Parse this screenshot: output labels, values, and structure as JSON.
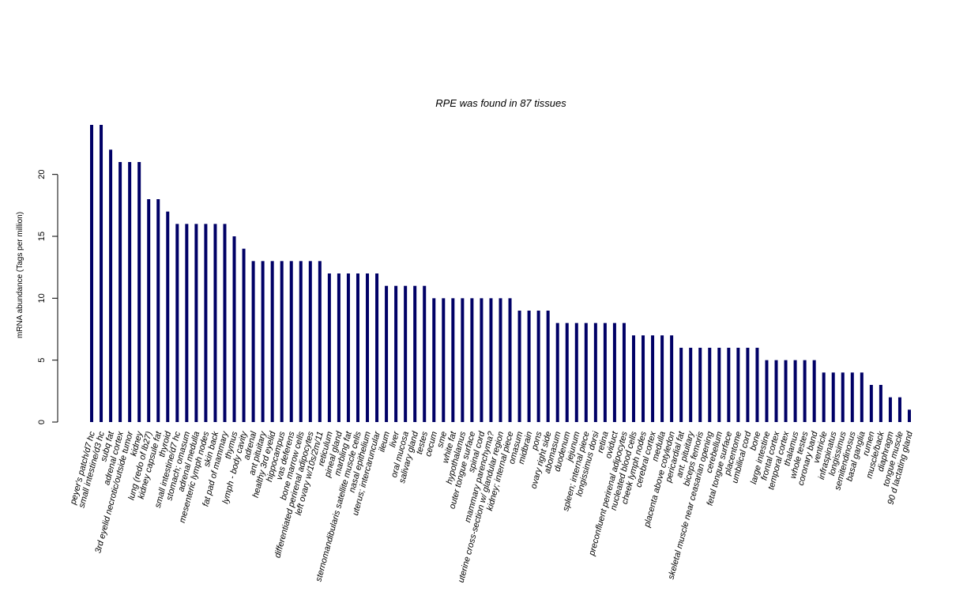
{
  "chart_data": {
    "type": "bar",
    "title": "RPE  was found in  87  tissues",
    "xlabel": "",
    "ylabel": "mRNA abundance (Tags per million)",
    "ylim": [
      0,
      24
    ],
    "yticks": [
      0,
      5,
      10,
      15,
      20
    ],
    "bar_color": "#000066",
    "grid": false,
    "categories": [
      "peyer's patch/d7 hc",
      "small intestine/d3 hc",
      "subq fat",
      "adrenal cortex",
      "3rd eyelid necrotic/outside tumor",
      "kidney",
      "lung (redo of lb27)",
      "kidney capsule fat",
      "thyroid",
      "small intestine/d7 hc",
      "stomach; omasum",
      "adrenal medulla",
      "mesenteric lymph nodes",
      "skin back",
      "fat pad of mammary",
      "thymus",
      "lymph - body cavity",
      "adrenal",
      "ant pituitary",
      "healthy 3rd eyelid",
      "hippocampus",
      "vas deferens",
      "bone marrow cells",
      "differentiated perirenal adipocytes",
      "left ovary w/10s/2m/11",
      "reticulum",
      "pineal gland",
      "marbling fat",
      "sternomandibularis satellite muscle cells",
      "nasal epithelium",
      "uterus; intercaruncular",
      "ileum",
      "liver",
      "oral mucosa",
      "salivary gland",
      "testes",
      "cecum",
      "sme",
      "white fat",
      "hypothalamus",
      "outer tongue surface",
      "spinal cord",
      "mammary parenchyma?",
      "uterine cross-section w/ glandular region",
      "kidney; internal piece",
      "omasum",
      "midbrain",
      "pons",
      "ovary right side",
      "abomasum",
      "duodenum",
      "jejunum",
      "spleen; internal piece",
      "longissimus dorsi",
      "retina",
      "oviduct",
      "preconfluent perirenal adipocytes",
      "nucleated blood cells",
      "cheek lymph nodes",
      "cerebral cortex",
      "medulla",
      "placenta above cotyledon",
      "pericardial fat",
      "ant. pituitary",
      "biceps femoris",
      "skeletal muscle near ceasarian opening",
      "cerebellum",
      "fetal tongue surface",
      "placentome",
      "umbilical cord",
      "bone",
      "large intestine",
      "frontal cortex",
      "temporal cortex",
      "thalamus",
      "whole testes",
      "coronary band",
      "ventricle",
      "infraspinatus",
      "longissimus",
      "semitendinosus",
      "basal ganglia",
      "rumen",
      "muscle/back",
      "diaphragm",
      "tongue muscle",
      "90 d lactating gland"
    ],
    "values": [
      24,
      24,
      22,
      21,
      21,
      21,
      18,
      18,
      17,
      16,
      16,
      16,
      16,
      16,
      16,
      15,
      14,
      13,
      13,
      13,
      13,
      13,
      13,
      13,
      13,
      12,
      12,
      12,
      12,
      12,
      12,
      11,
      11,
      11,
      11,
      11,
      10,
      10,
      10,
      10,
      10,
      10,
      10,
      10,
      10,
      9,
      9,
      9,
      9,
      8,
      8,
      8,
      8,
      8,
      8,
      8,
      8,
      7,
      7,
      7,
      7,
      7,
      6,
      6,
      6,
      6,
      6,
      6,
      6,
      6,
      6,
      5,
      5,
      5,
      5,
      5,
      5,
      4,
      4,
      4,
      4,
      4,
      3,
      3,
      2,
      2,
      1
    ]
  }
}
